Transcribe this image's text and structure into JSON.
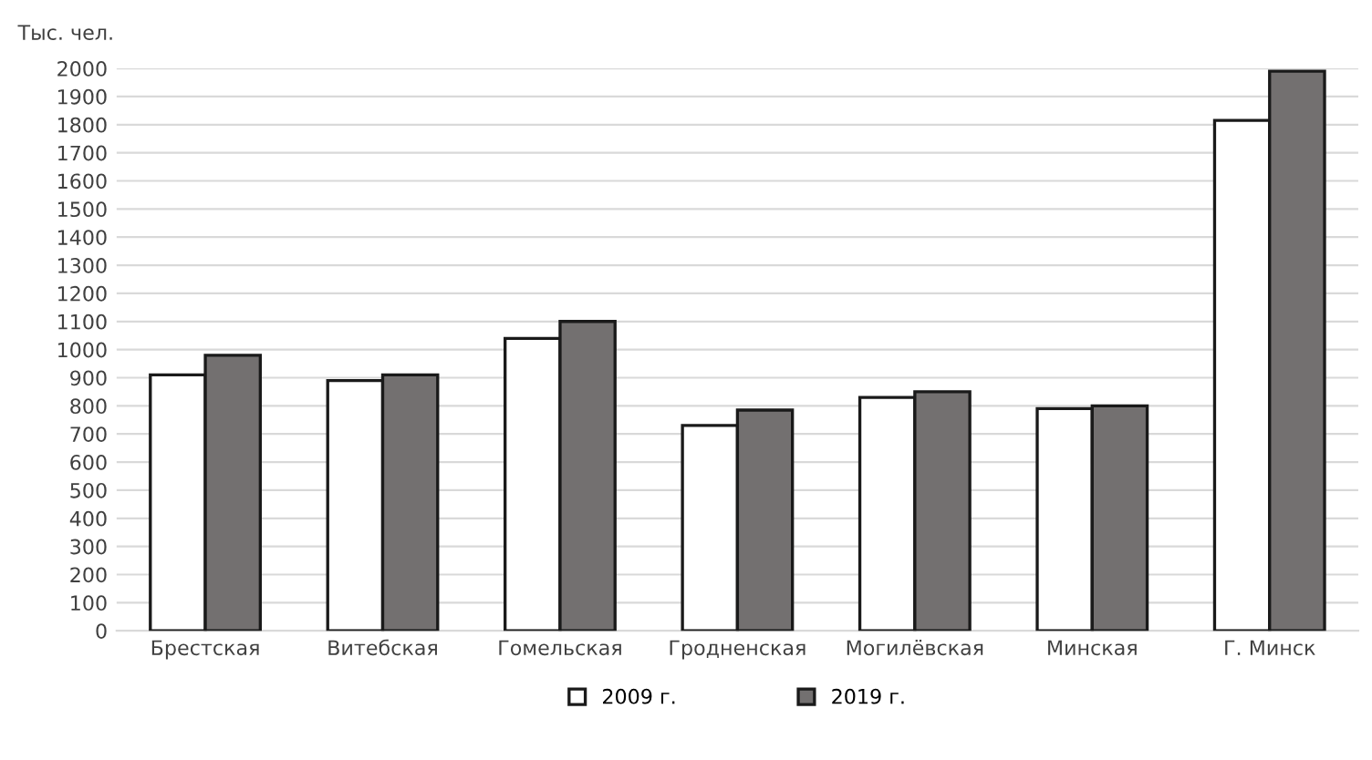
{
  "chart_data": {
    "type": "bar",
    "ylabel": "Тыс. чел.",
    "categories": [
      "Брестская",
      "Витебская",
      "Гомельская",
      "Гродненская",
      "Могилёвская",
      "Минская",
      "Г. Минск"
    ],
    "series": [
      {
        "name": "2009 г.",
        "color": "#ffffff",
        "values": [
          910,
          890,
          1040,
          730,
          830,
          790,
          1815
        ]
      },
      {
        "name": "2019 г.",
        "color": "#737070",
        "values": [
          980,
          910,
          1100,
          785,
          850,
          800,
          1990
        ]
      }
    ],
    "ylim": [
      0,
      2000
    ],
    "yticks": [
      0,
      100,
      200,
      300,
      400,
      500,
      600,
      700,
      800,
      900,
      1000,
      1100,
      1200,
      1300,
      1400,
      1500,
      1600,
      1700,
      1800,
      1900,
      2000
    ],
    "grid": "y",
    "legend": "bottom"
  }
}
